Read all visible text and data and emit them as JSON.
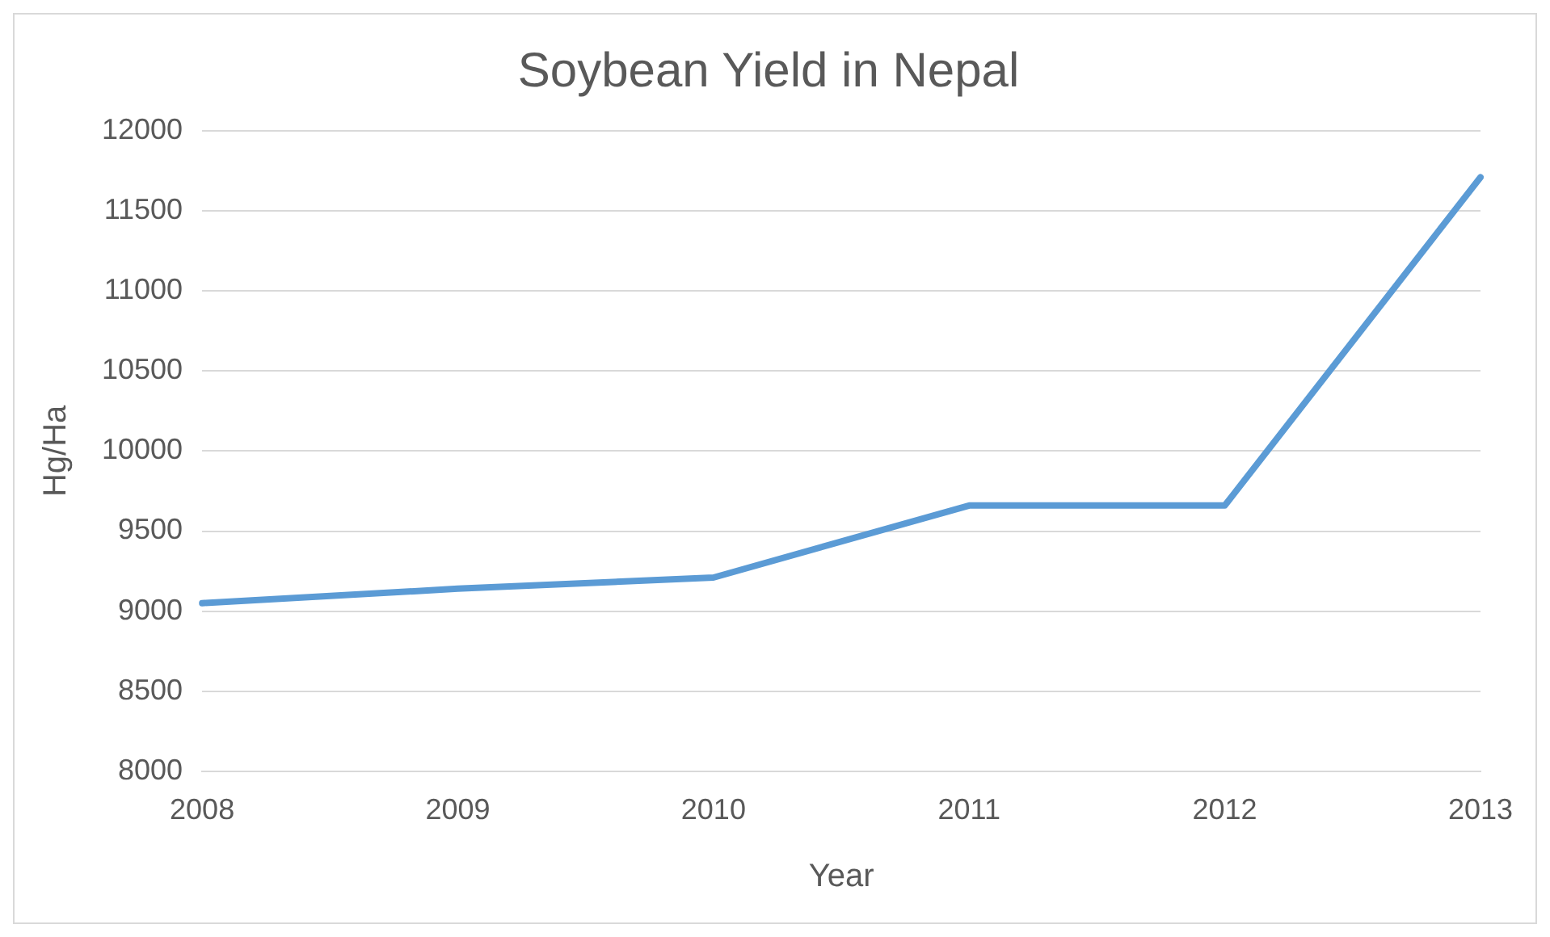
{
  "chart_data": {
    "type": "line",
    "title": "Soybean Yield in Nepal",
    "xlabel": "Year",
    "ylabel": "Hg/Ha",
    "categories": [
      "2008",
      "2009",
      "2010",
      "2011",
      "2012",
      "2013"
    ],
    "series": [
      {
        "color": "#5b9bd5",
        "values": [
          9050,
          9140,
          9210,
          9660,
          9660,
          11710
        ]
      }
    ],
    "ylim": [
      8000,
      12000
    ],
    "yticks": [
      8000,
      8500,
      9000,
      9500,
      10000,
      10500,
      11000,
      11500,
      12000
    ],
    "grid": "y",
    "legend": false,
    "marker": "none",
    "line_style": "solid"
  }
}
